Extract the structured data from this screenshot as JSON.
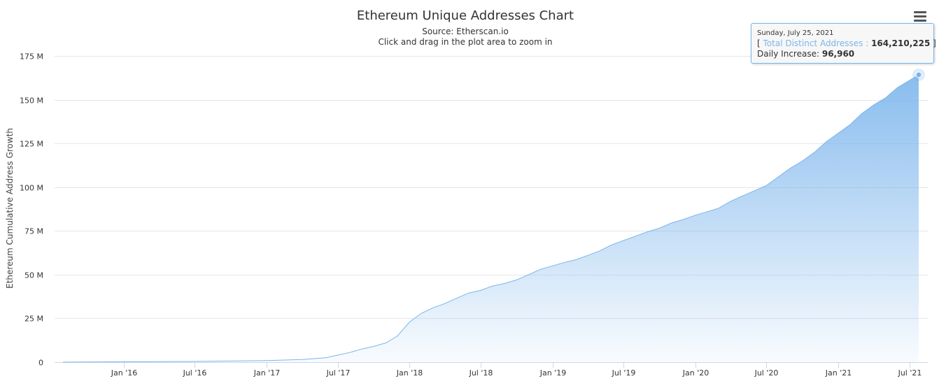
{
  "chart_data": {
    "type": "area",
    "title": "Ethereum Unique Addresses Chart",
    "subtitle_lines": [
      "Source: Etherscan.io",
      "Click and drag in the plot area to zoom in"
    ],
    "ylabel": "Ethereum Cumulative Address Growth",
    "xlabel": "",
    "ylim": [
      0,
      175000000
    ],
    "xlim": [
      "2015-07-30",
      "2021-07-25"
    ],
    "y_ticks": [
      {
        "value": 0,
        "label": "0"
      },
      {
        "value": 25000000,
        "label": "25 M"
      },
      {
        "value": 50000000,
        "label": "50 M"
      },
      {
        "value": 75000000,
        "label": "75 M"
      },
      {
        "value": 100000000,
        "label": "100 M"
      },
      {
        "value": 125000000,
        "label": "125 M"
      },
      {
        "value": 150000000,
        "label": "150 M"
      },
      {
        "value": 175000000,
        "label": "175 M"
      }
    ],
    "x_ticks": [
      {
        "date": "2016-01-01",
        "label": "Jan '16"
      },
      {
        "date": "2016-07-01",
        "label": "Jul '16"
      },
      {
        "date": "2017-01-01",
        "label": "Jan '17"
      },
      {
        "date": "2017-07-01",
        "label": "Jul '17"
      },
      {
        "date": "2018-01-01",
        "label": "Jan '18"
      },
      {
        "date": "2018-07-01",
        "label": "Jul '18"
      },
      {
        "date": "2019-01-01",
        "label": "Jan '19"
      },
      {
        "date": "2019-07-01",
        "label": "Jul '19"
      },
      {
        "date": "2020-01-01",
        "label": "Jan '20"
      },
      {
        "date": "2020-07-01",
        "label": "Jul '20"
      },
      {
        "date": "2021-01-01",
        "label": "Jan '21"
      },
      {
        "date": "2021-07-01",
        "label": "Jul '21"
      }
    ],
    "series": [
      {
        "name": "Total Distinct Addresses",
        "color": "#7cb5ec",
        "points": [
          {
            "date": "2015-07-30",
            "value": 0
          },
          {
            "date": "2016-01-01",
            "value": 200000
          },
          {
            "date": "2016-07-01",
            "value": 400000
          },
          {
            "date": "2017-01-01",
            "value": 900000
          },
          {
            "date": "2017-04-01",
            "value": 1500000
          },
          {
            "date": "2017-06-01",
            "value": 2500000
          },
          {
            "date": "2017-07-01",
            "value": 4000000
          },
          {
            "date": "2017-08-01",
            "value": 5500000
          },
          {
            "date": "2017-09-01",
            "value": 7500000
          },
          {
            "date": "2017-10-01",
            "value": 9000000
          },
          {
            "date": "2017-11-01",
            "value": 11000000
          },
          {
            "date": "2017-12-01",
            "value": 15000000
          },
          {
            "date": "2018-01-01",
            "value": 23000000
          },
          {
            "date": "2018-02-01",
            "value": 28000000
          },
          {
            "date": "2018-03-01",
            "value": 31000000
          },
          {
            "date": "2018-04-01",
            "value": 33500000
          },
          {
            "date": "2018-05-01",
            "value": 36500000
          },
          {
            "date": "2018-06-01",
            "value": 39500000
          },
          {
            "date": "2018-07-01",
            "value": 41000000
          },
          {
            "date": "2018-08-01",
            "value": 43500000
          },
          {
            "date": "2018-09-01",
            "value": 45000000
          },
          {
            "date": "2018-10-01",
            "value": 47000000
          },
          {
            "date": "2018-11-01",
            "value": 50000000
          },
          {
            "date": "2018-12-01",
            "value": 53000000
          },
          {
            "date": "2019-01-01",
            "value": 55000000
          },
          {
            "date": "2019-02-01",
            "value": 57000000
          },
          {
            "date": "2019-03-01",
            "value": 58500000
          },
          {
            "date": "2019-04-01",
            "value": 61000000
          },
          {
            "date": "2019-05-01",
            "value": 63500000
          },
          {
            "date": "2019-06-01",
            "value": 67000000
          },
          {
            "date": "2019-07-01",
            "value": 69500000
          },
          {
            "date": "2019-08-01",
            "value": 72000000
          },
          {
            "date": "2019-09-01",
            "value": 74500000
          },
          {
            "date": "2019-10-01",
            "value": 76500000
          },
          {
            "date": "2019-11-01",
            "value": 79500000
          },
          {
            "date": "2019-12-01",
            "value": 81500000
          },
          {
            "date": "2020-01-01",
            "value": 84000000
          },
          {
            "date": "2020-02-01",
            "value": 86000000
          },
          {
            "date": "2020-03-01",
            "value": 88000000
          },
          {
            "date": "2020-04-01",
            "value": 92000000
          },
          {
            "date": "2020-05-01",
            "value": 95000000
          },
          {
            "date": "2020-06-01",
            "value": 98000000
          },
          {
            "date": "2020-07-01",
            "value": 101000000
          },
          {
            "date": "2020-08-01",
            "value": 106000000
          },
          {
            "date": "2020-09-01",
            "value": 111000000
          },
          {
            "date": "2020-10-01",
            "value": 115000000
          },
          {
            "date": "2020-11-01",
            "value": 120000000
          },
          {
            "date": "2020-12-01",
            "value": 126000000
          },
          {
            "date": "2021-01-01",
            "value": 131000000
          },
          {
            "date": "2021-02-01",
            "value": 136000000
          },
          {
            "date": "2021-03-01",
            "value": 142000000
          },
          {
            "date": "2021-04-01",
            "value": 147000000
          },
          {
            "date": "2021-05-01",
            "value": 151000000
          },
          {
            "date": "2021-06-01",
            "value": 157000000
          },
          {
            "date": "2021-07-01",
            "value": 161000000
          },
          {
            "date": "2021-07-25",
            "value": 164210225
          }
        ]
      }
    ],
    "tooltip": {
      "date": "Sunday, July 25, 2021",
      "bracket_open": "[",
      "series_label": "Total Distinct Addresses",
      "separator": ":",
      "total_value": "164,210,225",
      "bracket_close": "]",
      "increase_label": "Daily Increase:",
      "increase_value": "96,960",
      "point_date": "2021-07-25",
      "point_value": 164210225
    },
    "grid": true,
    "legend": "none"
  },
  "menu": {
    "icon": "hamburger-menu-icon"
  }
}
